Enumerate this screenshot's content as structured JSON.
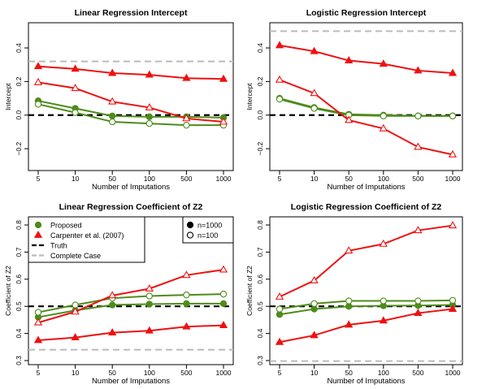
{
  "chart_data": [
    {
      "type": "line",
      "title": "Linear Regression Intercept",
      "xlabel": "Number of Imputations",
      "ylabel": "Intercept",
      "categories": [
        "5",
        "10",
        "50",
        "100",
        "500",
        "1000"
      ],
      "ylim": [
        -0.33,
        0.55
      ],
      "yticks": [
        -0.2,
        0.0,
        0.2,
        0.4
      ],
      "ytick_labels": [
        "−0.2",
        "0.0",
        "0.2",
        "0.4"
      ],
      "reference_lines": [
        {
          "name": "Truth",
          "y": 0.0,
          "color": "#000000",
          "style": "dashed"
        },
        {
          "name": "Complete Case",
          "y": 0.32,
          "color": "#bbbbbb",
          "style": "dashed"
        }
      ],
      "series": [
        {
          "name": "Proposed",
          "n": "1000",
          "color": "#4d8c1a",
          "marker": "filled-circle",
          "values": [
            0.085,
            0.04,
            -0.005,
            -0.01,
            -0.01,
            -0.015
          ]
        },
        {
          "name": "Proposed",
          "n": "100",
          "color": "#4d8c1a",
          "marker": "open-circle",
          "values": [
            0.065,
            0.015,
            -0.04,
            -0.05,
            -0.06,
            -0.06
          ]
        },
        {
          "name": "Carpenter et al. (2007)",
          "n": "1000",
          "color": "#ee1111",
          "marker": "filled-triangle",
          "values": [
            0.29,
            0.275,
            0.25,
            0.24,
            0.22,
            0.215
          ]
        },
        {
          "name": "Carpenter et al. (2007)",
          "n": "100",
          "color": "#ee1111",
          "marker": "open-triangle",
          "values": [
            0.195,
            0.16,
            0.08,
            0.045,
            -0.02,
            -0.04
          ]
        }
      ]
    },
    {
      "type": "line",
      "title": "Logistic Regression Intercept",
      "xlabel": "Number of Imputations",
      "ylabel": "Intercept",
      "categories": [
        "5",
        "10",
        "50",
        "100",
        "500",
        "1000"
      ],
      "ylim": [
        -0.33,
        0.55
      ],
      "yticks": [
        -0.2,
        0.0,
        0.2,
        0.4
      ],
      "ytick_labels": [
        "−0.2",
        "0.0",
        "0.2",
        "0.4"
      ],
      "reference_lines": [
        {
          "name": "Truth",
          "y": 0.0,
          "color": "#000000",
          "style": "dashed"
        },
        {
          "name": "Complete Case",
          "y": 0.5,
          "color": "#bbbbbb",
          "style": "dashed"
        }
      ],
      "series": [
        {
          "name": "Proposed",
          "n": "1000",
          "color": "#4d8c1a",
          "marker": "filled-circle",
          "values": [
            0.1,
            0.045,
            0.005,
            0.0,
            -0.005,
            -0.005
          ]
        },
        {
          "name": "Proposed",
          "n": "100",
          "color": "#4d8c1a",
          "marker": "open-circle",
          "values": [
            0.095,
            0.04,
            0.0,
            -0.005,
            -0.005,
            -0.005
          ]
        },
        {
          "name": "Carpenter et al. (2007)",
          "n": "1000",
          "color": "#ee1111",
          "marker": "filled-triangle",
          "values": [
            0.415,
            0.38,
            0.325,
            0.305,
            0.265,
            0.25
          ]
        },
        {
          "name": "Carpenter et al. (2007)",
          "n": "100",
          "color": "#ee1111",
          "marker": "open-triangle",
          "values": [
            0.21,
            0.13,
            -0.03,
            -0.08,
            -0.19,
            -0.235
          ]
        }
      ]
    },
    {
      "type": "line",
      "title": "Linear Regression Coefficient of Z2",
      "xlabel": "Number of Imputations",
      "ylabel": "Coefficient of Z2",
      "categories": [
        "5",
        "10",
        "50",
        "100",
        "500",
        "1000"
      ],
      "ylim": [
        0.285,
        0.83
      ],
      "yticks": [
        0.3,
        0.4,
        0.5,
        0.6,
        0.7,
        0.8
      ],
      "ytick_labels": [
        "0.3",
        "0.4",
        "0.5",
        "0.6",
        "0.7",
        "0.8"
      ],
      "reference_lines": [
        {
          "name": "Truth",
          "y": 0.5,
          "color": "#000000",
          "style": "dashed"
        },
        {
          "name": "Complete Case",
          "y": 0.34,
          "color": "#bbbbbb",
          "style": "dashed"
        }
      ],
      "series": [
        {
          "name": "Proposed",
          "n": "1000",
          "color": "#4d8c1a",
          "marker": "filled-circle",
          "values": [
            0.46,
            0.485,
            0.505,
            0.508,
            0.51,
            0.51
          ]
        },
        {
          "name": "Proposed",
          "n": "100",
          "color": "#4d8c1a",
          "marker": "open-circle",
          "values": [
            0.478,
            0.505,
            0.53,
            0.538,
            0.542,
            0.545
          ]
        },
        {
          "name": "Carpenter et al. (2007)",
          "n": "1000",
          "color": "#ee1111",
          "marker": "filled-triangle",
          "values": [
            0.375,
            0.385,
            0.403,
            0.41,
            0.425,
            0.43
          ]
        },
        {
          "name": "Carpenter et al. (2007)",
          "n": "100",
          "color": "#ee1111",
          "marker": "open-triangle",
          "values": [
            0.44,
            0.48,
            0.54,
            0.565,
            0.615,
            0.635
          ]
        }
      ]
    },
    {
      "type": "line",
      "title": "Logistic Regression Coefficient of Z2",
      "xlabel": "Number of Imputations",
      "ylabel": "Coefficient of Z2",
      "categories": [
        "5",
        "10",
        "50",
        "100",
        "500",
        "1000"
      ],
      "ylim": [
        0.285,
        0.83
      ],
      "yticks": [
        0.3,
        0.4,
        0.5,
        0.6,
        0.7,
        0.8
      ],
      "ytick_labels": [
        "0.3",
        "0.4",
        "0.5",
        "0.6",
        "0.7",
        "0.8"
      ],
      "reference_lines": [
        {
          "name": "Truth",
          "y": 0.5,
          "color": "#000000",
          "style": "dashed"
        },
        {
          "name": "Complete Case",
          "y": 0.298,
          "color": "#bbbbbb",
          "style": "dashed"
        }
      ],
      "series": [
        {
          "name": "Proposed",
          "n": "1000",
          "color": "#4d8c1a",
          "marker": "filled-circle",
          "values": [
            0.47,
            0.49,
            0.5,
            0.502,
            0.503,
            0.505
          ]
        },
        {
          "name": "Proposed",
          "n": "100",
          "color": "#4d8c1a",
          "marker": "open-circle",
          "values": [
            0.49,
            0.51,
            0.52,
            0.52,
            0.52,
            0.522
          ]
        },
        {
          "name": "Carpenter et al. (2007)",
          "n": "1000",
          "color": "#ee1111",
          "marker": "filled-triangle",
          "values": [
            0.368,
            0.393,
            0.432,
            0.447,
            0.475,
            0.49
          ]
        },
        {
          "name": "Carpenter et al. (2007)",
          "n": "100",
          "color": "#ee1111",
          "marker": "open-triangle",
          "values": [
            0.535,
            0.595,
            0.705,
            0.73,
            0.78,
            0.798
          ]
        }
      ]
    }
  ],
  "legend": {
    "method_entries": [
      {
        "label": "Proposed",
        "color": "#4d8c1a",
        "symbol": "filled-circle"
      },
      {
        "label": "Carpenter et al. (2007)",
        "color": "#ee1111",
        "symbol": "filled-triangle"
      },
      {
        "label": "Truth",
        "color": "#000000",
        "symbol": "dashed-line"
      },
      {
        "label": "Complete Case",
        "color": "#bbbbbb",
        "symbol": "dashed-line"
      }
    ],
    "size_entries": [
      {
        "label": "n=1000",
        "symbol": "filled-circle"
      },
      {
        "label": "n=100",
        "symbol": "open-circle"
      }
    ]
  }
}
